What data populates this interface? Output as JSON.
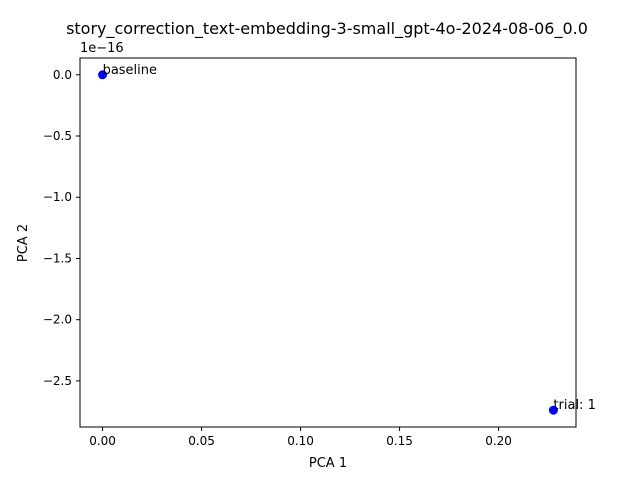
{
  "chart_data": {
    "type": "scatter",
    "title": "story_correction_text-embedding-3-small_gpt-4o-2024-08-06_0.0",
    "xlabel": "PCA 1",
    "ylabel": "PCA 2",
    "y_offset_label": "1e−16",
    "xlim": [
      -0.0114,
      0.2391
    ],
    "ylim": [
      -2.8763,
      0.137
    ],
    "x_ticks": [
      0.0,
      0.05,
      0.1,
      0.15,
      0.2
    ],
    "x_tick_labels": [
      "0.00",
      "0.05",
      "0.10",
      "0.15",
      "0.20"
    ],
    "y_ticks": [
      0.0,
      -0.5,
      -1.0,
      -1.5,
      -2.0,
      -2.5
    ],
    "y_tick_labels": [
      "0.0",
      "−0.5",
      "−1.0",
      "−1.5",
      "−2.0",
      "−2.5"
    ],
    "grid": false,
    "point_color": "#0000ff",
    "points": [
      {
        "label": "baseline",
        "x": 0.0,
        "y": 0.0
      },
      {
        "label": "trial: 1",
        "x": 0.2277,
        "y": -2.7393
      }
    ]
  }
}
